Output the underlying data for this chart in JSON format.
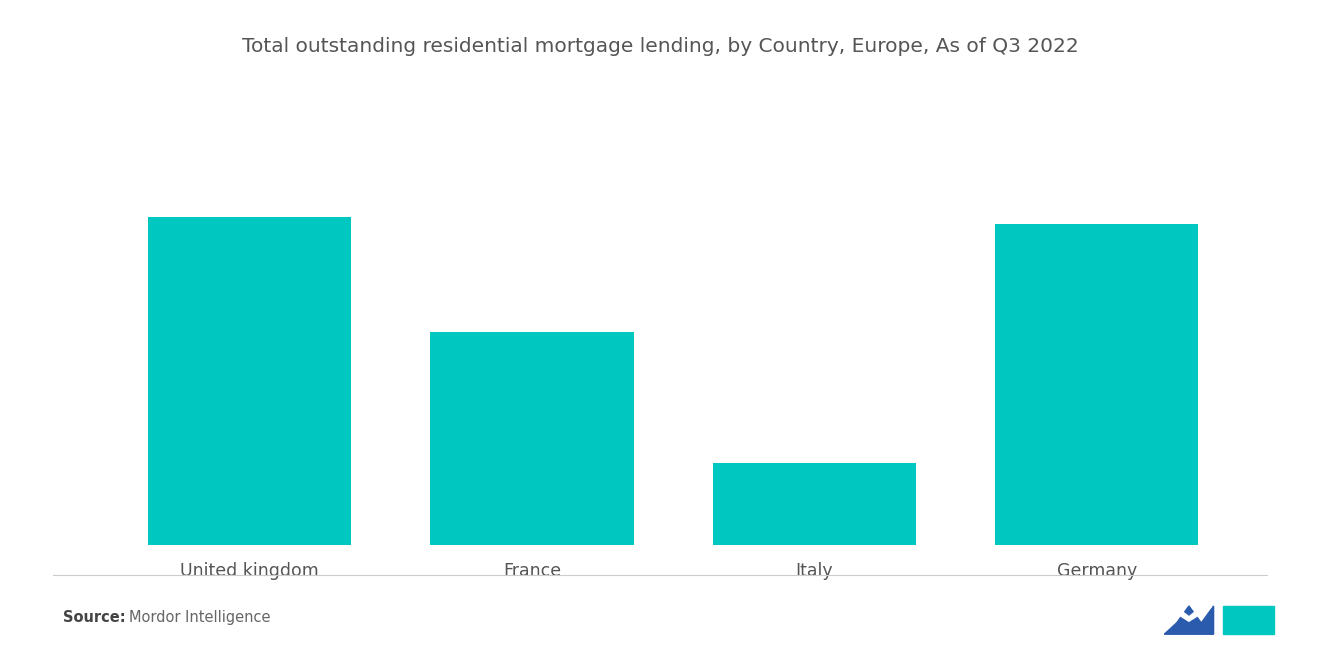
{
  "title": "Total outstanding residential mortgage lending, by Country, Europe, As of Q3 2022",
  "categories": [
    "United kingdom",
    "France",
    "Italy",
    "Germany"
  ],
  "values": [
    100,
    65,
    25,
    98
  ],
  "bar_color": "#00C8C0",
  "background_color": "#ffffff",
  "title_fontsize": 14.5,
  "label_fontsize": 12.5,
  "source_text": "Source:",
  "source_detail": "Mordor Intelligence",
  "title_color": "#555555",
  "label_color": "#555555",
  "source_bold_color": "#444444",
  "source_normal_color": "#666666"
}
